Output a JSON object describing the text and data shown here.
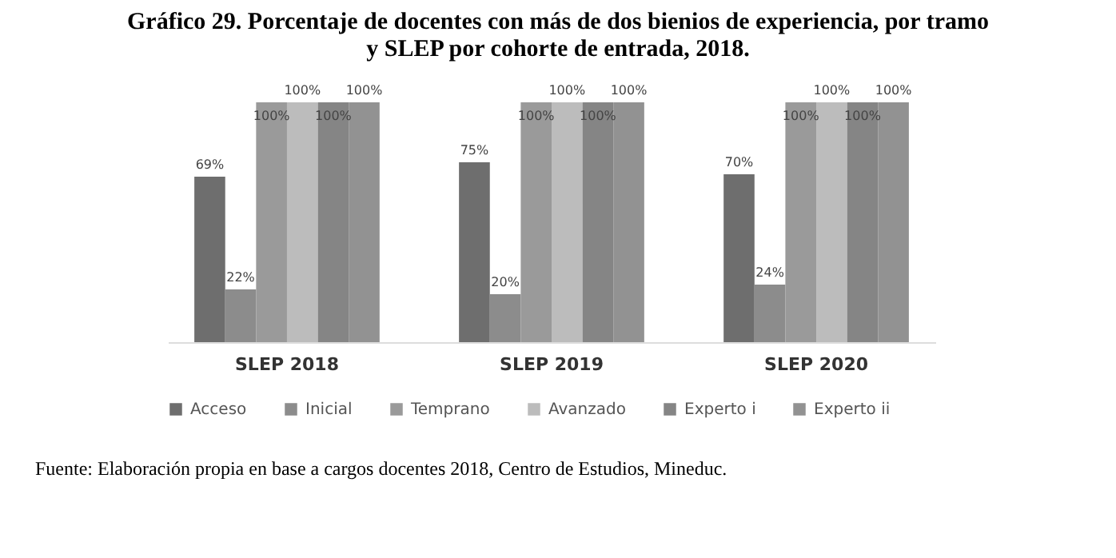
{
  "chart_data": {
    "type": "bar",
    "title": "Gráfico 29. Porcentaje de docentes con más de dos bienios de experiencia, por tramo y SLEP por cohorte de entrada, 2018.",
    "categories": [
      "SLEP 2018",
      "SLEP 2019",
      "SLEP 2020"
    ],
    "series": [
      {
        "name": "Acceso",
        "color": "#6e6e6e",
        "values": [
          69,
          75,
          70
        ],
        "value_labels": [
          "69%",
          "75%",
          "70%"
        ]
      },
      {
        "name": "Inicial",
        "color": "#8c8c8c",
        "values": [
          22,
          20,
          24
        ],
        "value_labels": [
          "22%",
          "20%",
          "24%"
        ]
      },
      {
        "name": "Temprano",
        "color": "#9a9a9a",
        "values": [
          100,
          100,
          100
        ],
        "value_labels": [
          "100%",
          "100%",
          "100%"
        ]
      },
      {
        "name": "Avanzado",
        "color": "#bcbcbc",
        "values": [
          100,
          100,
          100
        ],
        "value_labels": [
          "100%",
          "100%",
          "100%"
        ]
      },
      {
        "name": "Experto i",
        "color": "#858585",
        "values": [
          100,
          100,
          100
        ],
        "value_labels": [
          "100%",
          "100%",
          "100%"
        ]
      },
      {
        "name": "Experto ii",
        "color": "#929292",
        "values": [
          100,
          100,
          100
        ],
        "value_labels": [
          "100%",
          "100%",
          "100%"
        ]
      }
    ],
    "legend": "bottom",
    "grid": false,
    "annotations": [
      "Fuente: Elaboración propia en base a cargos docentes 2018, Centro de Estudios, Mineduc."
    ]
  }
}
